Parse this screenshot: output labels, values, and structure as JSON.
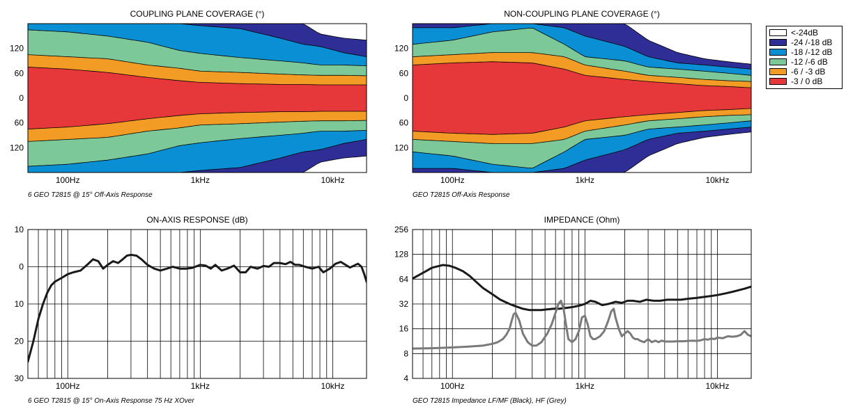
{
  "legend": {
    "items": [
      {
        "label": "<-24dB",
        "color": "#ffffff"
      },
      {
        "label": "-24 /-18 dB",
        "color": "#2e2e96"
      },
      {
        "label": "-18 /-12 dB",
        "color": "#0a8fd4"
      },
      {
        "label": "-12 /-6 dB",
        "color": "#7cc898"
      },
      {
        "label": "-6 / -3 dB",
        "color": "#f39c25"
      },
      {
        "label": "-3 / 0 dB",
        "color": "#e6373a"
      }
    ]
  },
  "x_ticks": [
    {
      "label": "100Hz",
      "value": 100
    },
    {
      "label": "1kHz",
      "value": 1000
    },
    {
      "label": "10kHz",
      "value": 10000
    }
  ],
  "chart_data": [
    {
      "type": "heatmap",
      "title": "COUPLING PLANE COVERAGE (°)",
      "caption": "6 GEO T2815 @ 15° Off-Axis Response",
      "xscale": "log",
      "xlim": [
        50,
        18000
      ],
      "ylim": [
        -180,
        180
      ],
      "ytick_labels": [
        {
          "label": "120",
          "value": 120
        },
        {
          "label": "60",
          "value": 60
        },
        {
          "label": "0",
          "value": 0
        },
        {
          "label": "60",
          "value": -60
        },
        {
          "label": "120",
          "value": -120
        }
      ],
      "contours": [
        {
          "level": "-24 /-18 dB",
          "x": [
            50,
            100,
            200,
            400,
            700,
            1000,
            2000,
            4000,
            6000,
            8000,
            12000,
            18000
          ],
          "half_width": [
            180,
            180,
            180,
            180,
            180,
            180,
            180,
            180,
            180,
            155,
            145,
            140
          ]
        },
        {
          "level": "-18 /-12 dB",
          "x": [
            50,
            100,
            200,
            400,
            700,
            1000,
            2000,
            4000,
            6000,
            8000,
            12000,
            18000
          ],
          "half_width": [
            180,
            180,
            180,
            180,
            180,
            175,
            168,
            145,
            130,
            125,
            110,
            100
          ]
        },
        {
          "level": "-12 /-6 dB",
          "x": [
            50,
            100,
            200,
            400,
            700,
            1000,
            2000,
            4000,
            6000,
            8000,
            12000,
            18000
          ],
          "half_width": [
            165,
            160,
            150,
            135,
            115,
            108,
            98,
            90,
            85,
            80,
            80,
            78
          ]
        },
        {
          "level": "-6 / -3 dB",
          "x": [
            50,
            100,
            200,
            400,
            700,
            1000,
            2000,
            4000,
            6000,
            8000,
            12000,
            18000
          ],
          "half_width": [
            105,
            100,
            95,
            80,
            72,
            65,
            62,
            58,
            56,
            55,
            55,
            54
          ]
        },
        {
          "level": "-3 / 0 dB",
          "x": [
            50,
            100,
            200,
            400,
            700,
            1000,
            2000,
            4000,
            6000,
            8000,
            12000,
            18000
          ],
          "half_width": [
            75,
            70,
            62,
            50,
            42,
            38,
            35,
            33,
            33,
            32,
            32,
            32
          ]
        }
      ]
    },
    {
      "type": "heatmap",
      "title": "NON-COUPLING PLANE COVERAGE (°)",
      "caption": "GEO T2815 Off-Axis Response",
      "xscale": "log",
      "xlim": [
        50,
        18000
      ],
      "ylim": [
        -180,
        180
      ],
      "ytick_labels": [
        {
          "label": "120",
          "value": 120
        },
        {
          "label": "60",
          "value": 60
        },
        {
          "label": "0",
          "value": 0
        },
        {
          "label": "60",
          "value": -60
        },
        {
          "label": "120",
          "value": -120
        }
      ],
      "contours": [
        {
          "level": "-24 /-18 dB",
          "x": [
            50,
            100,
            200,
            400,
            700,
            1000,
            2000,
            3000,
            5000,
            8000,
            12000,
            18000
          ],
          "half_width": [
            180,
            180,
            180,
            180,
            180,
            180,
            180,
            140,
            110,
            95,
            88,
            82
          ]
        },
        {
          "level": "-18 /-12 dB",
          "x": [
            50,
            100,
            200,
            400,
            700,
            1000,
            2000,
            3000,
            5000,
            8000,
            12000,
            18000
          ],
          "half_width": [
            170,
            170,
            180,
            180,
            170,
            150,
            125,
            100,
            85,
            80,
            75,
            70
          ]
        },
        {
          "level": "-12 /-6 dB",
          "x": [
            50,
            100,
            200,
            400,
            700,
            1000,
            2000,
            3000,
            5000,
            8000,
            12000,
            18000
          ],
          "half_width": [
            130,
            140,
            160,
            170,
            130,
            100,
            90,
            75,
            70,
            65,
            60,
            55
          ]
        },
        {
          "level": "-6 / -3 dB",
          "x": [
            50,
            100,
            200,
            400,
            700,
            1000,
            2000,
            3000,
            5000,
            8000,
            12000,
            18000
          ],
          "half_width": [
            100,
            105,
            110,
            110,
            100,
            80,
            65,
            55,
            50,
            45,
            42,
            40
          ]
        },
        {
          "level": "-3 / 0 dB",
          "x": [
            50,
            100,
            200,
            400,
            700,
            1000,
            2000,
            3000,
            5000,
            8000,
            12000,
            18000
          ],
          "half_width": [
            80,
            85,
            88,
            85,
            70,
            55,
            45,
            40,
            35,
            30,
            28,
            25
          ]
        }
      ]
    },
    {
      "type": "line",
      "title": "ON-AXIS RESPONSE (dB)",
      "caption": "6 GEO T2815 @ 15° On-Axis Response 75 Hz XOver",
      "xscale": "log",
      "xlim": [
        50,
        18000
      ],
      "ylim": [
        -30,
        10
      ],
      "ytick_labels": [
        {
          "label": "10",
          "value": 10
        },
        {
          "label": "0",
          "value": 0
        },
        {
          "label": "10",
          "value": -10
        },
        {
          "label": "20",
          "value": -20
        },
        {
          "label": "30",
          "value": -30
        }
      ],
      "series": [
        {
          "color": "#1a1a1a",
          "x": [
            50,
            55,
            60,
            65,
            70,
            75,
            80,
            90,
            100,
            110,
            125,
            140,
            155,
            170,
            185,
            200,
            220,
            240,
            260,
            280,
            300,
            330,
            360,
            400,
            450,
            500,
            560,
            620,
            700,
            780,
            870,
            1000,
            1100,
            1200,
            1300,
            1450,
            1600,
            1800,
            2000,
            2200,
            2400,
            2700,
            3000,
            3300,
            3600,
            4000,
            4400,
            4800,
            5200,
            5600,
            6200,
            7000,
            7800,
            8500,
            9500,
            10500,
            11500,
            12500,
            13500,
            14500,
            15500,
            16500,
            17300,
            18000
          ],
          "values": [
            -25.5,
            -20,
            -14,
            -10,
            -7,
            -5,
            -4,
            -3,
            -2,
            -1.5,
            -1,
            0.5,
            2,
            1.5,
            -0.5,
            0.5,
            1.5,
            1,
            2,
            3,
            3.2,
            3,
            2,
            0.5,
            -0.5,
            -1,
            -0.5,
            0,
            -0.5,
            -0.5,
            -0.3,
            0.5,
            0.3,
            -0.5,
            0.5,
            -1,
            -0.5,
            0.3,
            -1.5,
            -1.5,
            0,
            -0.5,
            0.2,
            0,
            1,
            1,
            0.7,
            1.3,
            0.5,
            0.5,
            0,
            -0.5,
            0,
            -1.5,
            -0.5,
            0.8,
            1.3,
            0.5,
            -0.2,
            0.3,
            0.8,
            0,
            -2,
            -4
          ]
        }
      ]
    },
    {
      "type": "line",
      "title": "IMPEDANCE (Ohm)",
      "caption": "GEO T2815 Impedance LF/MF (Black), HF (Grey)",
      "xscale": "log",
      "yscale": "log",
      "xlim": [
        50,
        18000
      ],
      "ylim": [
        4,
        256
      ],
      "ytick_labels": [
        {
          "label": "256",
          "value": 256
        },
        {
          "label": "128",
          "value": 128
        },
        {
          "label": "64",
          "value": 64
        },
        {
          "label": "32",
          "value": 32
        },
        {
          "label": "16",
          "value": 16
        },
        {
          "label": "8",
          "value": 8
        },
        {
          "label": "4",
          "value": 4
        }
      ],
      "series": [
        {
          "color": "#1a1a1a",
          "x": [
            50,
            56,
            63,
            70,
            78,
            85,
            95,
            105,
            120,
            135,
            150,
            170,
            200,
            230,
            270,
            300,
            340,
            380,
            420,
            470,
            520,
            580,
            640,
            700,
            760,
            820,
            900,
            1000,
            1100,
            1200,
            1350,
            1500,
            1700,
            1900,
            2100,
            2300,
            2600,
            2900,
            3300,
            3700,
            4200,
            4700,
            5300,
            6000,
            7000,
            8000,
            9000,
            10000,
            11500,
            13000,
            14500,
            16000,
            18000
          ],
          "values": [
            65,
            72,
            80,
            88,
            92,
            95,
            93,
            88,
            80,
            70,
            60,
            50,
            42,
            36,
            32,
            30,
            28,
            27,
            27,
            27,
            27.5,
            28,
            28,
            28.5,
            29,
            29.5,
            30.5,
            32,
            35,
            34,
            31,
            32,
            34,
            33,
            35,
            35,
            34,
            36,
            35,
            35,
            36,
            36,
            36,
            37,
            38,
            39,
            40,
            41,
            43,
            45,
            47,
            49,
            52
          ]
        },
        {
          "color": "#7a7a7a",
          "x": [
            50,
            70,
            100,
            130,
            170,
            200,
            220,
            240,
            255,
            270,
            280,
            290,
            300,
            320,
            340,
            370,
            400,
            430,
            470,
            520,
            560,
            600,
            630,
            660,
            690,
            720,
            750,
            800,
            850,
            900,
            950,
            1000,
            1050,
            1100,
            1150,
            1200,
            1300,
            1400,
            1500,
            1580,
            1650,
            1700,
            1800,
            1900,
            2000,
            2100,
            2200,
            2300,
            2400,
            2500,
            2600,
            2800,
            3000,
            3200,
            3400,
            3600,
            3800,
            4000,
            4300,
            4600,
            5000,
            5500,
            6000,
            6500,
            7000,
            7500,
            8000,
            8500,
            9000,
            9500,
            10000,
            11000,
            12000,
            13000,
            14000,
            15000,
            16000,
            17000,
            18000
          ],
          "values": [
            9.2,
            9.3,
            9.5,
            9.7,
            10,
            10.5,
            11,
            12,
            13.5,
            16,
            20,
            24,
            25,
            20,
            14,
            11,
            10,
            10,
            11,
            14,
            18,
            25,
            32,
            35,
            28,
            18,
            12,
            11,
            12,
            15,
            22,
            23,
            18,
            13,
            12,
            12,
            13,
            15,
            20,
            26,
            28,
            22,
            16,
            13,
            14,
            15,
            14,
            12.5,
            12,
            12,
            11.5,
            11,
            12,
            11,
            11.5,
            11,
            11.5,
            11.2,
            11.2,
            11.2,
            11.3,
            11.3,
            11.4,
            11.5,
            11.4,
            11.6,
            12,
            11.8,
            12.2,
            12,
            12.5,
            12.3,
            13,
            12.8,
            13,
            13.5,
            15,
            13.5,
            13
          ]
        }
      ]
    }
  ]
}
